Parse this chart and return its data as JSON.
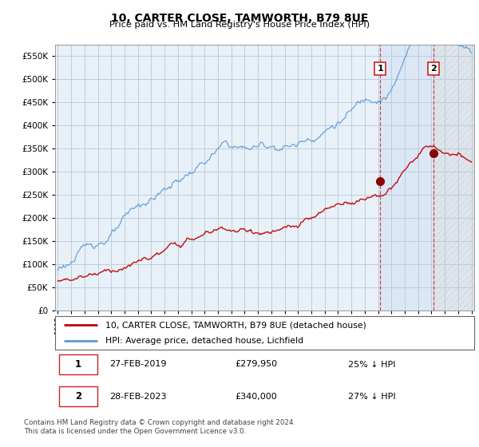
{
  "title": "10, CARTER CLOSE, TAMWORTH, B79 8UE",
  "subtitle": "Price paid vs. HM Land Registry's House Price Index (HPI)",
  "hpi_color": "#5b9bd5",
  "price_color": "#c00000",
  "marker_color": "#8b0000",
  "bg_color": "#ddeeff",
  "grid_color": "#aaaacc",
  "ylim": [
    0,
    575000
  ],
  "yticks": [
    0,
    50000,
    100000,
    150000,
    200000,
    250000,
    300000,
    350000,
    400000,
    450000,
    500000,
    550000
  ],
  "xlim_start": 1994.8,
  "xlim_end": 2026.2,
  "sale1_x": 2019.15,
  "sale1_y": 279950,
  "sale2_x": 2023.15,
  "sale2_y": 340000,
  "ann1_label": "1",
  "ann2_label": "2",
  "legend_line1": "10, CARTER CLOSE, TAMWORTH, B79 8UE (detached house)",
  "legend_line2": "HPI: Average price, detached house, Lichfield",
  "table_row1": [
    "1",
    "27-FEB-2019",
    "£279,950",
    "25% ↓ HPI"
  ],
  "table_row2": [
    "2",
    "28-FEB-2023",
    "£340,000",
    "27% ↓ HPI"
  ],
  "footnote": "Contains HM Land Registry data © Crown copyright and database right 2024.\nThis data is licensed under the Open Government Licence v3.0.",
  "vline1_x": 2019.15,
  "vline2_x": 2023.15
}
